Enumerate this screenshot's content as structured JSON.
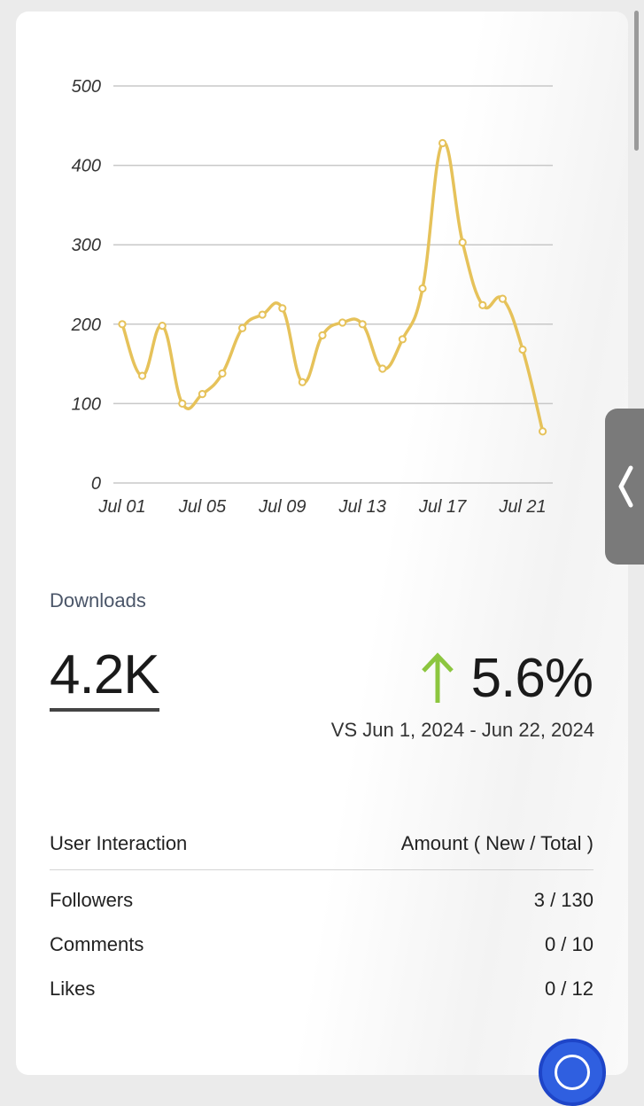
{
  "chart_data": {
    "type": "line",
    "y_ticks": [
      "500",
      "400",
      "300",
      "200",
      "100",
      "0"
    ],
    "x_ticks": [
      "Jul 01",
      "Jul 05",
      "Jul 09",
      "Jul 13",
      "Jul 17",
      "Jul 21"
    ],
    "ylim": [
      0,
      500
    ],
    "grid": true,
    "series": [
      {
        "color": "#e6c25a",
        "x": [
          "Jul 01",
          "Jul 02",
          "Jul 03",
          "Jul 04",
          "Jul 05",
          "Jul 06",
          "Jul 07",
          "Jul 08",
          "Jul 09",
          "Jul 10",
          "Jul 11",
          "Jul 12",
          "Jul 13",
          "Jul 14",
          "Jul 15",
          "Jul 16",
          "Jul 17",
          "Jul 18",
          "Jul 19",
          "Jul 20",
          "Jul 21",
          "Jul 22"
        ],
        "values": [
          200,
          135,
          198,
          100,
          112,
          138,
          195,
          212,
          220,
          127,
          186,
          202,
          200,
          144,
          181,
          245,
          428,
          303,
          224,
          232,
          168,
          65
        ]
      }
    ]
  },
  "metric": {
    "label": "Downloads",
    "value": "4.2K",
    "change": "5.6%",
    "change_direction": "up",
    "change_color": "#8cc63f",
    "compare_text": "VS Jun 1, 2024 - Jun 22, 2024"
  },
  "table": {
    "header_left": "User Interaction",
    "header_right": "Amount ( New / Total )",
    "rows": [
      {
        "name": "Followers",
        "amount": "3 / 130"
      },
      {
        "name": "Comments",
        "amount": "0 / 10"
      },
      {
        "name": "Likes",
        "amount": "0 / 12"
      }
    ]
  },
  "icons": {
    "change_arrow": "arrow-up-icon",
    "side_handle": "chevron-left-icon"
  }
}
